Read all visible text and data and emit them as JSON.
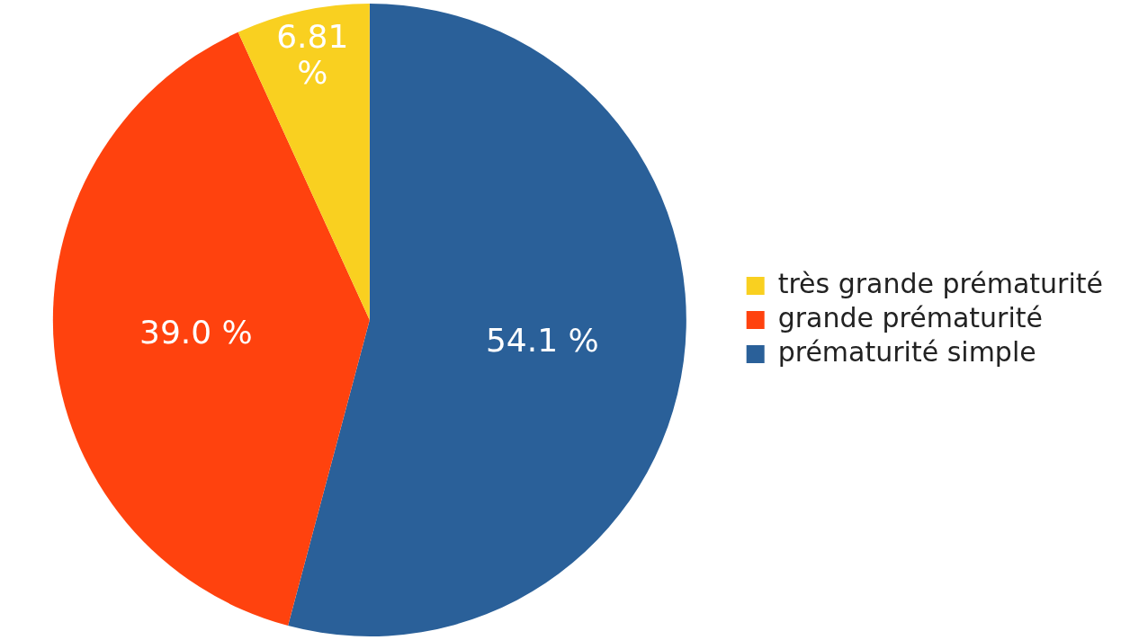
{
  "chart_data": {
    "type": "pie",
    "categories": [
      "très grande prématurité",
      "grande prématurité",
      "prématurité simple"
    ],
    "values": [
      6.81,
      39.0,
      54.1
    ],
    "colors": [
      "#f9d020",
      "#ff420e",
      "#2a6099"
    ],
    "value_labels": [
      "6.81 %",
      "39.0 %",
      "54.1 %"
    ],
    "legend": "right"
  }
}
